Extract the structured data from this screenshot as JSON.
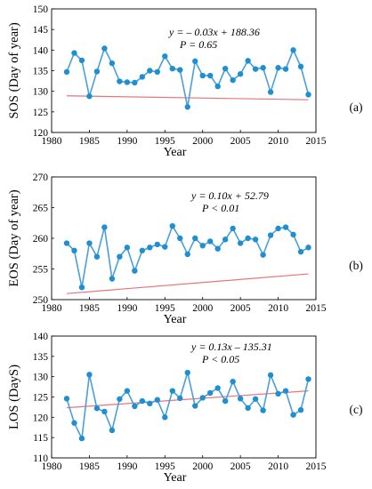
{
  "chart_data": [
    {
      "type": "line",
      "panel_label": "(a)",
      "ylabel": "SOS (Day of year)",
      "xlabel": "Year",
      "xlim": [
        1980,
        2015
      ],
      "ylim": [
        120,
        150
      ],
      "xticks": [
        1980,
        1985,
        1990,
        1995,
        2000,
        2005,
        2010,
        2015
      ],
      "yticks": [
        120,
        125,
        130,
        135,
        140,
        145,
        150
      ],
      "annotations": [
        "y = – 0.03x + 188.36",
        "P = 0.65"
      ],
      "trend": {
        "slope": -0.03,
        "intercept": 188.36
      },
      "series": [
        {
          "x": [
            1982,
            1983,
            1984,
            1985,
            1986,
            1987,
            1988,
            1989,
            1990,
            1991,
            1992,
            1993,
            1994,
            1995,
            1996,
            1997,
            1998,
            1999,
            2000,
            2001,
            2002,
            2003,
            2004,
            2005,
            2006,
            2007,
            2008,
            2009,
            2010,
            2011,
            2012,
            2013,
            2014
          ],
          "values": [
            134.7,
            139.3,
            137.5,
            128.8,
            134.8,
            140.4,
            136.8,
            132.4,
            132.2,
            132.1,
            133.5,
            135.0,
            134.7,
            138.5,
            135.5,
            135.2,
            126.2,
            137.3,
            133.8,
            133.8,
            131.2,
            135.5,
            132.7,
            134.2,
            137.4,
            135.4,
            135.7,
            129.8,
            135.7,
            135.4,
            140.0,
            136.0,
            129.2
          ]
        }
      ]
    },
    {
      "type": "line",
      "panel_label": "(b)",
      "ylabel": "EOS (Day of year)",
      "xlabel": "Year",
      "xlim": [
        1980,
        2015
      ],
      "ylim": [
        250,
        270
      ],
      "xticks": [
        1980,
        1985,
        1990,
        1995,
        2000,
        2005,
        2010,
        2015
      ],
      "yticks": [
        250,
        255,
        260,
        265,
        270
      ],
      "annotations": [
        "y = 0.10x + 52.79",
        "P < 0.01"
      ],
      "trend": {
        "slope": 0.1,
        "intercept": 52.79
      },
      "series": [
        {
          "x": [
            1982,
            1983,
            1984,
            1985,
            1986,
            1987,
            1988,
            1989,
            1990,
            1991,
            1992,
            1993,
            1994,
            1995,
            1996,
            1997,
            1998,
            1999,
            2000,
            2001,
            2002,
            2003,
            2004,
            2005,
            2006,
            2007,
            2008,
            2009,
            2010,
            2011,
            2012,
            2013,
            2014
          ],
          "values": [
            259.2,
            258.0,
            252.0,
            259.2,
            257.0,
            261.8,
            253.4,
            257.0,
            258.5,
            254.7,
            258.0,
            258.5,
            259.0,
            258.6,
            262.0,
            260.0,
            257.4,
            260.0,
            258.8,
            259.5,
            258.3,
            259.8,
            261.6,
            259.2,
            260.0,
            259.8,
            257.3,
            260.5,
            261.6,
            261.8,
            260.6,
            257.8,
            258.5
          ]
        }
      ]
    },
    {
      "type": "line",
      "panel_label": "(c)",
      "ylabel": "LOS (DayS)",
      "xlabel": "Year",
      "xlim": [
        1980,
        2015
      ],
      "ylim": [
        110,
        140
      ],
      "xticks": [
        1980,
        1985,
        1990,
        1995,
        2000,
        2005,
        2010,
        2015
      ],
      "yticks": [
        110,
        115,
        120,
        125,
        130,
        135,
        140
      ],
      "annotations": [
        "y = 0.13x – 135.31",
        "P < 0.05"
      ],
      "trend": {
        "slope": 0.13,
        "intercept": -135.31
      },
      "series": [
        {
          "x": [
            1982,
            1983,
            1984,
            1985,
            1986,
            1987,
            1988,
            1989,
            1990,
            1991,
            1992,
            1993,
            1994,
            1995,
            1996,
            1997,
            1998,
            1999,
            2000,
            2001,
            2002,
            2003,
            2004,
            2005,
            2006,
            2007,
            2008,
            2009,
            2010,
            2011,
            2012,
            2013,
            2014
          ],
          "values": [
            124.6,
            118.6,
            114.8,
            130.5,
            122.2,
            121.4,
            116.8,
            124.5,
            126.5,
            122.7,
            124.0,
            123.4,
            124.3,
            120.0,
            126.5,
            124.7,
            131.0,
            122.8,
            124.8,
            126.0,
            127.2,
            124.0,
            128.8,
            124.6,
            122.3,
            124.5,
            121.7,
            130.4,
            125.8,
            126.5,
            120.6,
            121.8,
            129.4
          ]
        }
      ]
    }
  ]
}
